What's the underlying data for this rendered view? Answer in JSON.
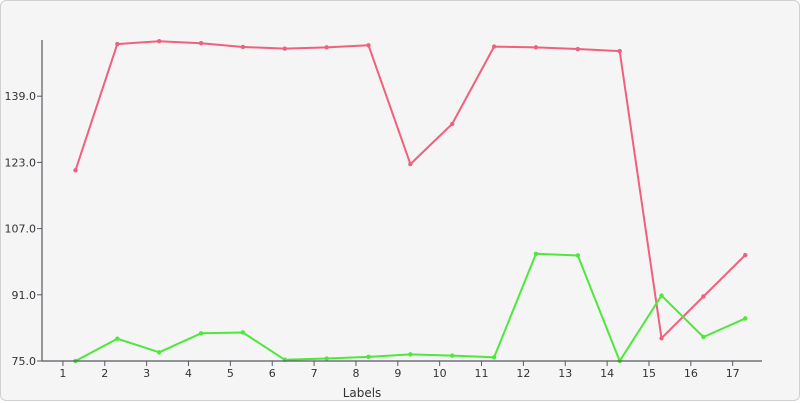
{
  "chart_data": {
    "type": "line",
    "title": "",
    "xlabel": "Labels",
    "ylabel": "",
    "categories": [
      "1",
      "2",
      "3",
      "4",
      "5",
      "6",
      "7",
      "8",
      "9",
      "10",
      "11",
      "12",
      "13",
      "14",
      "15",
      "16",
      "17"
    ],
    "x_range": [
      0.5,
      17.7
    ],
    "ylim": [
      75,
      155
    ],
    "yticks": [
      75.0,
      91.0,
      107.0,
      123.0,
      139.0
    ],
    "grid": false,
    "legend": "none",
    "series": [
      {
        "color": "#f0607e",
        "x": [
          1.3,
          2.3,
          3.3,
          4.3,
          5.3,
          6.3,
          7.3,
          8.3,
          9.3,
          10.3,
          11.3,
          12.3,
          13.3,
          14.3,
          15.3,
          16.3,
          17.3
        ],
        "values": [
          121.1,
          151.6,
          152.3,
          151.8,
          150.9,
          150.5,
          150.8,
          151.3,
          122.6,
          132.3,
          151.0,
          150.8,
          150.4,
          149.9,
          80.5,
          90.6,
          100.6
        ]
      },
      {
        "color": "#4ee83a",
        "x": [
          1.3,
          2.3,
          3.3,
          4.3,
          5.3,
          6.3,
          7.3,
          8.3,
          9.3,
          10.3,
          11.3,
          12.3,
          13.3,
          14.3,
          15.3,
          16.3,
          17.3
        ],
        "values": [
          75.0,
          80.4,
          77.1,
          81.7,
          81.9,
          75.3,
          75.6,
          76.0,
          76.6,
          76.3,
          75.9,
          100.9,
          100.5,
          75.0,
          90.8,
          80.8,
          85.3
        ]
      }
    ]
  }
}
